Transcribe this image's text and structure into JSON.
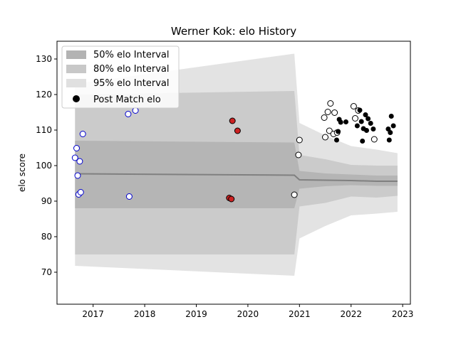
{
  "chart_data": {
    "type": "scatter",
    "title": "Werner Kok: elo History",
    "xlabel": "",
    "ylabel": "elo score",
    "xlim": [
      2016.3,
      2023.15
    ],
    "ylim": [
      61,
      135
    ],
    "x_ticks": [
      2017,
      2018,
      2019,
      2020,
      2021,
      2022,
      2023
    ],
    "y_ticks": [
      70,
      80,
      90,
      100,
      110,
      120,
      130
    ],
    "legend_position": "top-left",
    "legend": [
      "50% elo Interval",
      "80% elo Interval",
      "95% elo Interval",
      "Post Match elo"
    ],
    "colors": {
      "band_50": "#b3b3b3",
      "band_80": "#c8c8c8",
      "band_95": "#e0e0e0",
      "median_line": "#808080",
      "marker_blue": "#0000cc",
      "marker_red": "#cc2222",
      "marker_black": "#000000"
    },
    "series": [
      {
        "name": "Post Match elo",
        "points": [
          {
            "x": 2016.65,
            "y": 102.2,
            "style": "blue"
          },
          {
            "x": 2016.68,
            "y": 104.9,
            "style": "blue"
          },
          {
            "x": 2016.7,
            "y": 97.2,
            "style": "blue"
          },
          {
            "x": 2016.72,
            "y": 91.9,
            "style": "blue"
          },
          {
            "x": 2016.74,
            "y": 101.2,
            "style": "blue"
          },
          {
            "x": 2016.76,
            "y": 92.5,
            "style": "blue"
          },
          {
            "x": 2016.8,
            "y": 108.9,
            "style": "blue"
          },
          {
            "x": 2017.68,
            "y": 114.5,
            "style": "blue"
          },
          {
            "x": 2017.7,
            "y": 91.3,
            "style": "blue"
          },
          {
            "x": 2017.82,
            "y": 115.5,
            "style": "blue"
          },
          {
            "x": 2019.64,
            "y": 90.9,
            "style": "red"
          },
          {
            "x": 2019.68,
            "y": 90.6,
            "style": "red"
          },
          {
            "x": 2019.7,
            "y": 112.6,
            "style": "red"
          },
          {
            "x": 2019.8,
            "y": 109.8,
            "style": "red"
          },
          {
            "x": 2020.9,
            "y": 91.8,
            "style": "open"
          },
          {
            "x": 2020.98,
            "y": 103.0,
            "style": "open"
          },
          {
            "x": 2021.0,
            "y": 107.2,
            "style": "open"
          },
          {
            "x": 2021.48,
            "y": 113.5,
            "style": "open"
          },
          {
            "x": 2021.5,
            "y": 108.0,
            "style": "open"
          },
          {
            "x": 2021.55,
            "y": 115.1,
            "style": "open"
          },
          {
            "x": 2021.58,
            "y": 109.8,
            "style": "open"
          },
          {
            "x": 2021.6,
            "y": 117.5,
            "style": "open"
          },
          {
            "x": 2021.66,
            "y": 108.9,
            "style": "open"
          },
          {
            "x": 2021.68,
            "y": 114.9,
            "style": "open"
          },
          {
            "x": 2021.73,
            "y": 109.3,
            "style": "open"
          },
          {
            "x": 2022.05,
            "y": 116.7,
            "style": "open"
          },
          {
            "x": 2022.08,
            "y": 113.3,
            "style": "open"
          },
          {
            "x": 2022.14,
            "y": 115.5,
            "style": "open"
          },
          {
            "x": 2022.45,
            "y": 107.4,
            "style": "open"
          },
          {
            "x": 2021.72,
            "y": 107.2,
            "style": "black"
          },
          {
            "x": 2021.75,
            "y": 109.6,
            "style": "black"
          },
          {
            "x": 2021.77,
            "y": 113.0,
            "style": "black"
          },
          {
            "x": 2021.8,
            "y": 112.2,
            "style": "black"
          },
          {
            "x": 2021.9,
            "y": 112.3,
            "style": "black"
          },
          {
            "x": 2022.12,
            "y": 111.2,
            "style": "black"
          },
          {
            "x": 2022.17,
            "y": 115.6,
            "style": "black"
          },
          {
            "x": 2022.2,
            "y": 112.4,
            "style": "black"
          },
          {
            "x": 2022.22,
            "y": 106.9,
            "style": "black"
          },
          {
            "x": 2022.24,
            "y": 110.4,
            "style": "black"
          },
          {
            "x": 2022.28,
            "y": 114.3,
            "style": "black"
          },
          {
            "x": 2022.3,
            "y": 109.9,
            "style": "black"
          },
          {
            "x": 2022.33,
            "y": 113.2,
            "style": "black"
          },
          {
            "x": 2022.38,
            "y": 111.9,
            "style": "black"
          },
          {
            "x": 2022.43,
            "y": 110.3,
            "style": "black"
          },
          {
            "x": 2022.72,
            "y": 110.3,
            "style": "black"
          },
          {
            "x": 2022.74,
            "y": 107.2,
            "style": "black"
          },
          {
            "x": 2022.76,
            "y": 109.3,
            "style": "black"
          },
          {
            "x": 2022.78,
            "y": 113.9,
            "style": "black"
          },
          {
            "x": 2022.82,
            "y": 111.2,
            "style": "black"
          }
        ]
      }
    ],
    "bands": {
      "x": [
        2016.65,
        2020.9,
        2021.0,
        2021.5,
        2022.0,
        2022.5,
        2022.9
      ],
      "median": [
        97.7,
        97.3,
        96.0,
        95.9,
        95.8,
        95.6,
        95.6
      ],
      "p50": [
        [
          88.0,
          107.0
        ],
        [
          88.0,
          106.5
        ],
        [
          93.5,
          98.5
        ],
        [
          94.2,
          97.8
        ],
        [
          94.5,
          97.5
        ],
        [
          94.3,
          97.2
        ],
        [
          94.3,
          97.2
        ]
      ],
      "p80": [
        [
          75.0,
          120.0
        ],
        [
          75.0,
          121.0
        ],
        [
          88.5,
          103.0
        ],
        [
          89.5,
          101.8
        ],
        [
          91.3,
          100.2
        ],
        [
          91.0,
          100.0
        ],
        [
          91.5,
          100.0
        ]
      ],
      "p95": [
        [
          71.8,
          123.0
        ],
        [
          69.0,
          131.5
        ],
        [
          79.5,
          112.0
        ],
        [
          83.0,
          108.5
        ],
        [
          86.0,
          105.5
        ],
        [
          86.5,
          104.5
        ],
        [
          87.0,
          103.5
        ]
      ]
    }
  }
}
